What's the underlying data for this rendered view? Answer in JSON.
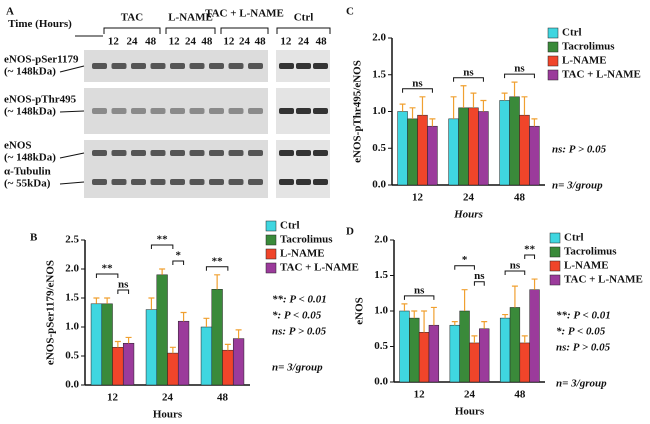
{
  "blot": {
    "panel": "A",
    "time_label": "Time (Hours)",
    "groups": [
      {
        "label": "TAC",
        "hours": [
          "12",
          "24",
          "48"
        ]
      },
      {
        "label": "L-NAME",
        "hours": [
          "12",
          "24",
          "48"
        ]
      },
      {
        "label": "TAC + L-NAME",
        "hours": [
          "12",
          "24",
          "48"
        ]
      },
      {
        "label": "Ctrl",
        "hours": [
          "12",
          "24",
          "48"
        ]
      }
    ],
    "rows": [
      {
        "label": "eNOS-pSer1179",
        "size": "(~ 148kDa)"
      },
      {
        "label": "eNOS-pThr495",
        "size": "(~ 148kDa)"
      },
      {
        "label": "eNOS",
        "size": "(~ 148kDa)"
      },
      {
        "label": "α-Tubulin",
        "size": "(~ 55kDa)"
      }
    ]
  },
  "chart_data": [
    {
      "type": "bar",
      "panel": "B",
      "ylabel": "eNOS-pSer1179/eNOS",
      "xlabel": "Hours",
      "categories": [
        "12",
        "24",
        "48"
      ],
      "series": [
        {
          "name": "Ctrl",
          "color": "#3fd6e0",
          "values": [
            1.4,
            1.3,
            1.0
          ],
          "errors": [
            0.1,
            0.2,
            0.15
          ]
        },
        {
          "name": "Tacrolimus",
          "color": "#3a8a3a",
          "values": [
            1.4,
            1.9,
            1.65
          ],
          "errors": [
            0.1,
            0.1,
            0.25
          ]
        },
        {
          "name": "L-NAME",
          "color": "#f0452a",
          "values": [
            0.65,
            0.55,
            0.6
          ],
          "errors": [
            0.1,
            0.1,
            0.1
          ]
        },
        {
          "name": "TAC + L-NAME",
          "color": "#9b3b9b",
          "values": [
            0.72,
            1.1,
            0.8
          ],
          "errors": [
            0.1,
            0.15,
            0.15
          ]
        }
      ],
      "ylim": [
        0,
        2.5
      ],
      "yticks": [
        {
          "value": 0,
          "label": "0.0"
        },
        0.5,
        {
          "value": 1,
          "label": "1.0"
        },
        1.5,
        {
          "value": 2,
          "label": "2.0"
        },
        2.5
      ],
      "significance": [
        {
          "label": "ns",
          "category": 0,
          "bars": [
            2,
            3
          ]
        },
        {
          "label": "**",
          "category": 0,
          "bars": [
            0,
            2
          ]
        },
        {
          "label": "*",
          "category": 1,
          "bars": [
            2,
            3
          ]
        },
        {
          "label": "**",
          "category": 1,
          "bars": [
            0,
            2
          ]
        },
        {
          "label": "**",
          "category": 2,
          "bars": [
            0,
            2
          ]
        }
      ],
      "notes": [
        "**: P < 0.01",
        "*: P < 0.05",
        "ns: P > 0.05",
        "n= 3/group"
      ]
    },
    {
      "type": "bar",
      "panel": "C",
      "ylabel": "eNOS-pThr495/eNOS",
      "xlabel": "Hours",
      "categories": [
        "12",
        "24",
        "48"
      ],
      "series": [
        {
          "name": "Ctrl",
          "color": "#3fd6e0",
          "values": [
            1.0,
            0.9,
            1.15
          ],
          "errors": [
            0.1,
            0.3,
            0.1
          ]
        },
        {
          "name": "Tacrolimus",
          "color": "#3a8a3a",
          "values": [
            0.9,
            1.05,
            1.2
          ],
          "errors": [
            0.15,
            0.3,
            0.2
          ]
        },
        {
          "name": "L-NAME",
          "color": "#f0452a",
          "values": [
            0.95,
            1.05,
            0.95
          ],
          "errors": [
            0.25,
            0.2,
            0.25
          ]
        },
        {
          "name": "TAC + L-NAME",
          "color": "#9b3b9b",
          "values": [
            0.8,
            1.0,
            0.8
          ],
          "errors": [
            0.1,
            0.15,
            0.1
          ]
        }
      ],
      "ylim": [
        0,
        2
      ],
      "yticks": [
        {
          "value": 0,
          "label": "0.0"
        },
        0.5,
        {
          "value": 1,
          "label": "1.0"
        },
        1.5,
        {
          "value": 2,
          "label": "2.0"
        }
      ],
      "significance": [
        {
          "label": "ns",
          "category": 0,
          "bars": [
            0,
            3
          ]
        },
        {
          "label": "ns",
          "category": 1,
          "bars": [
            0,
            3
          ]
        },
        {
          "label": "ns",
          "category": 2,
          "bars": [
            0,
            3
          ]
        }
      ],
      "notes": [
        "ns: P > 0.05",
        "n= 3/group"
      ]
    },
    {
      "type": "bar",
      "panel": "D",
      "ylabel": "eNOS",
      "xlabel": "Hours",
      "categories": [
        "12",
        "24",
        "48"
      ],
      "series": [
        {
          "name": "Ctrl",
          "color": "#3fd6e0",
          "values": [
            1.0,
            0.8,
            0.9
          ],
          "errors": [
            0.1,
            0.05,
            0.05
          ]
        },
        {
          "name": "Tacrolimus",
          "color": "#3a8a3a",
          "values": [
            0.9,
            1.0,
            1.05
          ],
          "errors": [
            0.1,
            0.3,
            0.3
          ]
        },
        {
          "name": "L-NAME",
          "color": "#f0452a",
          "values": [
            0.7,
            0.55,
            0.55
          ],
          "errors": [
            0.3,
            0.1,
            0.1
          ]
        },
        {
          "name": "TAC + L-NAME",
          "color": "#9b3b9b",
          "values": [
            0.8,
            0.75,
            1.3
          ],
          "errors": [
            0.25,
            0.1,
            0.15
          ]
        }
      ],
      "ylim": [
        0,
        2
      ],
      "yticks": [
        {
          "value": 0,
          "label": "0.0"
        },
        0.5,
        {
          "value": 1,
          "label": "1.0"
        },
        1.5,
        {
          "value": 2,
          "label": "2.0"
        }
      ],
      "significance": [
        {
          "label": "ns",
          "category": 0,
          "bars": [
            0,
            3
          ]
        },
        {
          "label": "ns",
          "category": 1,
          "bars": [
            2,
            3
          ]
        },
        {
          "label": "*",
          "category": 1,
          "bars": [
            0,
            2
          ]
        },
        {
          "label": "ns",
          "category": 2,
          "bars": [
            0,
            2
          ]
        },
        {
          "label": "**",
          "category": 2,
          "bars": [
            2,
            3
          ]
        }
      ],
      "notes": [
        "**: P < 0.01",
        "*: P < 0.05",
        "ns: P > 0.05",
        "n= 3/group"
      ]
    }
  ]
}
